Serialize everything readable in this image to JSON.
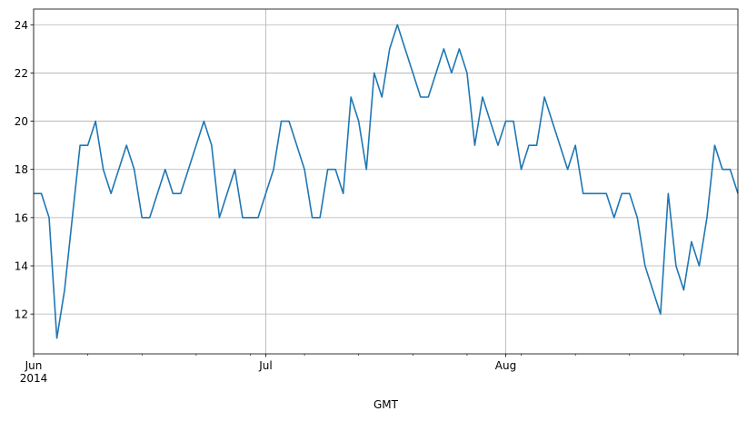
{
  "chart_data": {
    "type": "line",
    "xlabel": "GMT",
    "ylabel": "",
    "x_start": "2014-06-01",
    "x_end": "2014-08-31",
    "ylim": [
      10.35,
      24.65
    ],
    "grid": true,
    "series_color": "#1f77b4",
    "grid_color": "#b0b0b0",
    "y_ticks": [
      12,
      14,
      16,
      18,
      20,
      22,
      24
    ],
    "x_major_ticks": [
      {
        "date": "2014-06-01",
        "label": "Jun",
        "sublabel": "2014"
      },
      {
        "date": "2014-07-01",
        "label": "Jul",
        "sublabel": ""
      },
      {
        "date": "2014-08-01",
        "label": "Aug",
        "sublabel": ""
      }
    ],
    "x_minor_ticks": [
      "2014-06-08",
      "2014-06-15",
      "2014-06-22",
      "2014-06-29",
      "2014-07-06",
      "2014-07-13",
      "2014-07-20",
      "2014-07-27",
      "2014-08-03",
      "2014-08-10",
      "2014-08-17",
      "2014-08-24",
      "2014-08-31"
    ],
    "series": [
      {
        "values": [
          [
            "2014-06-01",
            17
          ],
          [
            "2014-06-02",
            17
          ],
          [
            "2014-06-03",
            16
          ],
          [
            "2014-06-04",
            11
          ],
          [
            "2014-06-05",
            13
          ],
          [
            "2014-06-06",
            16
          ],
          [
            "2014-06-07",
            19
          ],
          [
            "2014-06-08",
            19
          ],
          [
            "2014-06-09",
            20
          ],
          [
            "2014-06-10",
            18
          ],
          [
            "2014-06-11",
            17
          ],
          [
            "2014-06-12",
            18
          ],
          [
            "2014-06-13",
            19
          ],
          [
            "2014-06-14",
            18
          ],
          [
            "2014-06-15",
            16
          ],
          [
            "2014-06-16",
            16
          ],
          [
            "2014-06-17",
            17
          ],
          [
            "2014-06-18",
            18
          ],
          [
            "2014-06-19",
            17
          ],
          [
            "2014-06-20",
            17
          ],
          [
            "2014-06-21",
            18
          ],
          [
            "2014-06-22",
            19
          ],
          [
            "2014-06-23",
            20
          ],
          [
            "2014-06-24",
            19
          ],
          [
            "2014-06-25",
            16
          ],
          [
            "2014-06-26",
            17
          ],
          [
            "2014-06-27",
            18
          ],
          [
            "2014-06-28",
            16
          ],
          [
            "2014-06-29",
            16
          ],
          [
            "2014-06-30",
            16
          ],
          [
            "2014-07-01",
            17
          ],
          [
            "2014-07-02",
            18
          ],
          [
            "2014-07-03",
            20
          ],
          [
            "2014-07-04",
            20
          ],
          [
            "2014-07-05",
            19
          ],
          [
            "2014-07-06",
            18
          ],
          [
            "2014-07-07",
            16
          ],
          [
            "2014-07-08",
            16
          ],
          [
            "2014-07-09",
            18
          ],
          [
            "2014-07-10",
            18
          ],
          [
            "2014-07-11",
            17
          ],
          [
            "2014-07-12",
            21
          ],
          [
            "2014-07-13",
            20
          ],
          [
            "2014-07-14",
            18
          ],
          [
            "2014-07-15",
            22
          ],
          [
            "2014-07-16",
            21
          ],
          [
            "2014-07-17",
            23
          ],
          [
            "2014-07-18",
            24
          ],
          [
            "2014-07-19",
            23
          ],
          [
            "2014-07-20",
            22
          ],
          [
            "2014-07-21",
            21
          ],
          [
            "2014-07-22",
            21
          ],
          [
            "2014-07-23",
            22
          ],
          [
            "2014-07-24",
            23
          ],
          [
            "2014-07-25",
            22
          ],
          [
            "2014-07-26",
            23
          ],
          [
            "2014-07-27",
            22
          ],
          [
            "2014-07-28",
            19
          ],
          [
            "2014-07-29",
            21
          ],
          [
            "2014-07-30",
            20
          ],
          [
            "2014-07-31",
            19
          ],
          [
            "2014-08-01",
            20
          ],
          [
            "2014-08-02",
            20
          ],
          [
            "2014-08-03",
            18
          ],
          [
            "2014-08-04",
            19
          ],
          [
            "2014-08-05",
            19
          ],
          [
            "2014-08-06",
            21
          ],
          [
            "2014-08-07",
            20
          ],
          [
            "2014-08-08",
            19
          ],
          [
            "2014-08-09",
            18
          ],
          [
            "2014-08-10",
            19
          ],
          [
            "2014-08-11",
            17
          ],
          [
            "2014-08-12",
            17
          ],
          [
            "2014-08-13",
            17
          ],
          [
            "2014-08-14",
            17
          ],
          [
            "2014-08-15",
            16
          ],
          [
            "2014-08-16",
            17
          ],
          [
            "2014-08-17",
            17
          ],
          [
            "2014-08-18",
            16
          ],
          [
            "2014-08-19",
            14
          ],
          [
            "2014-08-20",
            13
          ],
          [
            "2014-08-21",
            12
          ],
          [
            "2014-08-22",
            17
          ],
          [
            "2014-08-23",
            14
          ],
          [
            "2014-08-24",
            13
          ],
          [
            "2014-08-25",
            15
          ],
          [
            "2014-08-26",
            14
          ],
          [
            "2014-08-27",
            16
          ],
          [
            "2014-08-28",
            19
          ],
          [
            "2014-08-29",
            18
          ],
          [
            "2014-08-30",
            18
          ],
          [
            "2014-08-31",
            17
          ]
        ]
      }
    ]
  }
}
